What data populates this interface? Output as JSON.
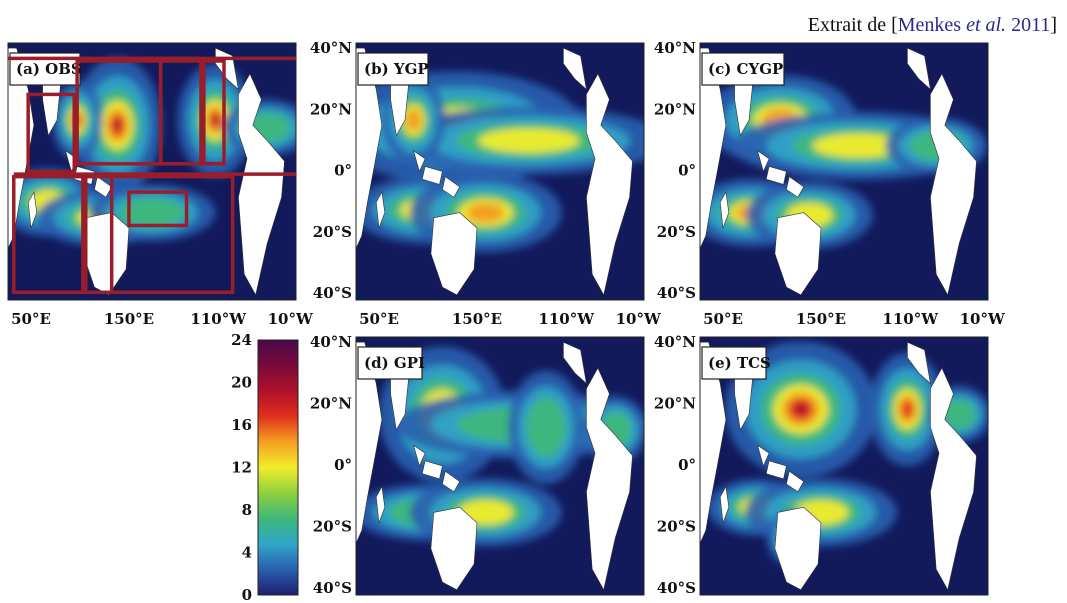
{
  "caption": {
    "prefix": "Extrait de [",
    "author": "Menkes ",
    "etal": "et al.",
    "year": " 2011",
    "suffix": "]"
  },
  "panels": [
    {
      "id": "a",
      "label": "(a) OBS"
    },
    {
      "id": "b",
      "label": "(b) YGP"
    },
    {
      "id": "c",
      "label": "(c) CYGP"
    },
    {
      "id": "d",
      "label": "(d) GPI"
    },
    {
      "id": "e",
      "label": "(e) TCS"
    }
  ],
  "lat_ticks": [
    "40°N",
    "20°N",
    "0°",
    "20°S",
    "40°S"
  ],
  "lon_ticks": [
    "50°E",
    "150°E",
    "110°W",
    "10°W"
  ],
  "colorbar": {
    "ticks": [
      "24",
      "20",
      "16",
      "12",
      "8",
      "4",
      "0"
    ],
    "min": 0,
    "max": 24,
    "colors": [
      "#1e1e6e",
      "#2a5fb0",
      "#30a6c8",
      "#3fb87a",
      "#8fcf3c",
      "#f2ec2a",
      "#f4a020",
      "#e0301e",
      "#b0102a",
      "#7a0a3a",
      "#4a0a4a"
    ]
  },
  "colors": {
    "ocean": "#121a5c",
    "land": "#ffffff",
    "boxes": "#9a1e2a"
  }
}
